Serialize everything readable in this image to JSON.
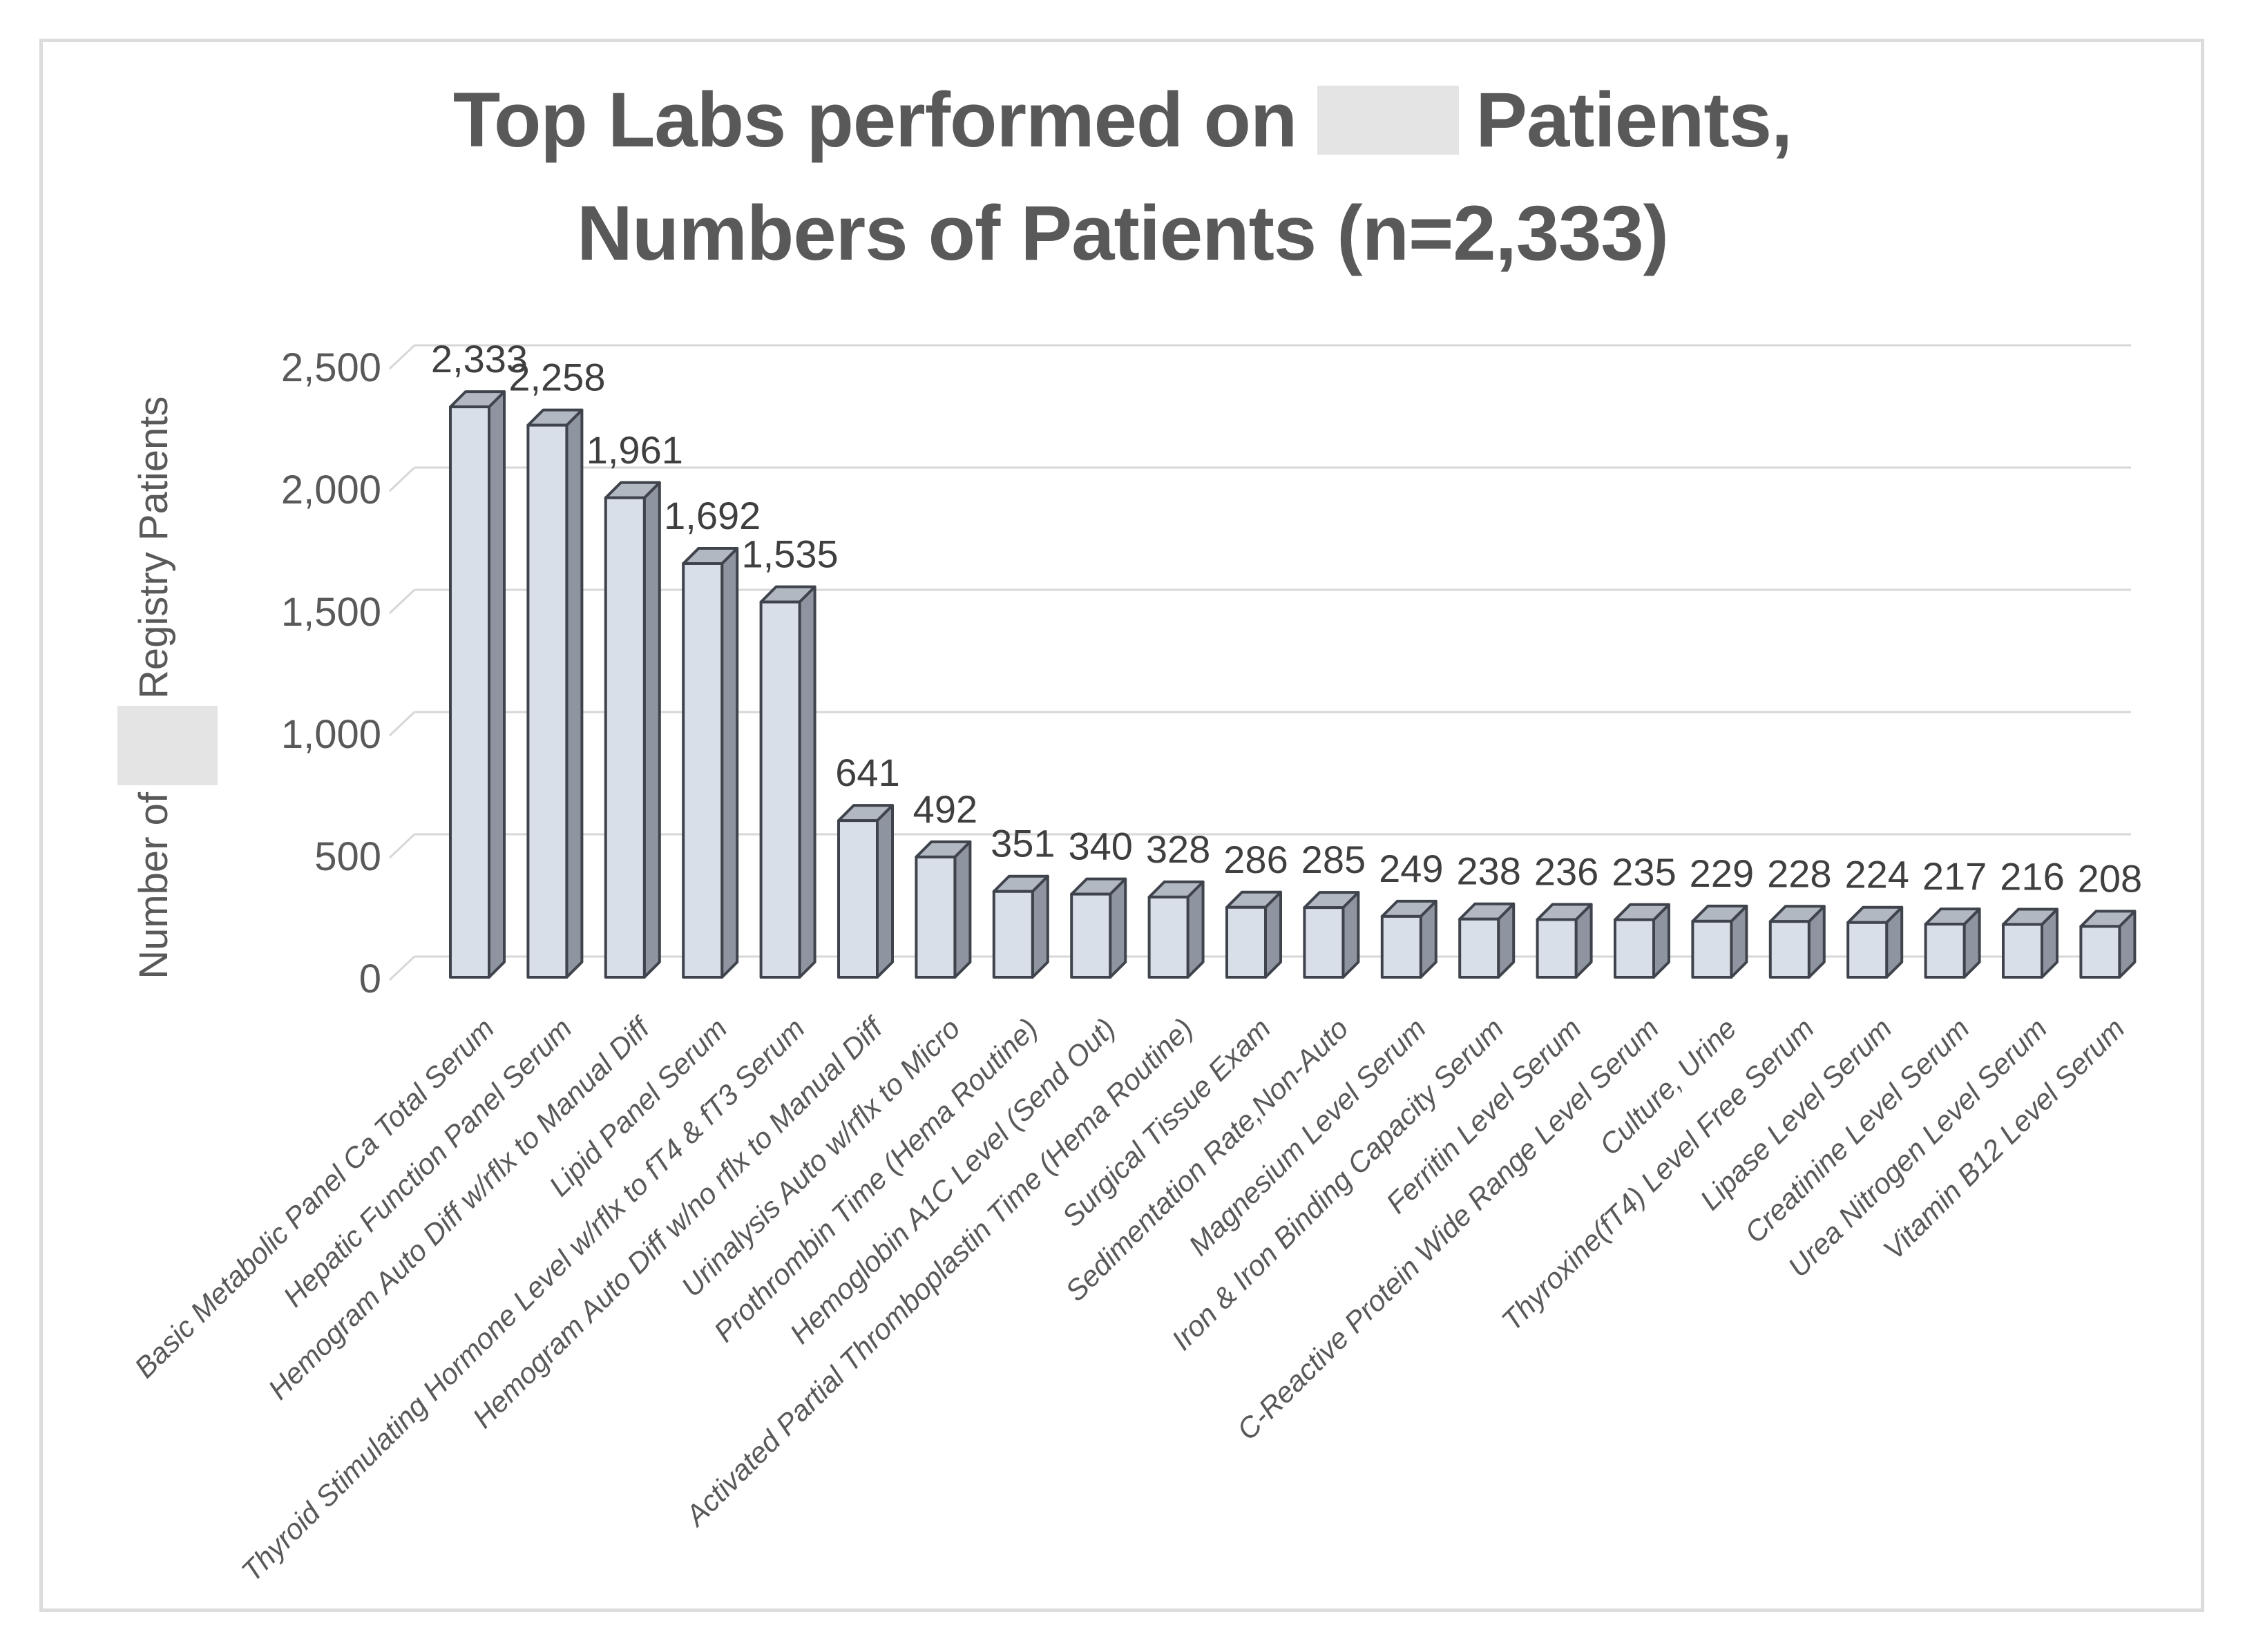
{
  "title": {
    "line1_before": "Top Labs performed on",
    "line1_after": "Patients,",
    "line2": "Numbers of Patients (n=2,333)",
    "redaction": "[redacted]"
  },
  "chart_data": {
    "type": "bar",
    "style": "3d-column",
    "title": "Top Labs performed on [redacted] Patients, Numbers of Patients (n=2,333)",
    "n_total": "2,333",
    "ylabel_before": "Number of",
    "ylabel_redaction": "[redacted]",
    "ylabel_after": "Registry Patients",
    "xlabel": "",
    "ylim": [
      0,
      2500
    ],
    "ytick_interval": 500,
    "yticks": [
      "0",
      "500",
      "1,000",
      "1,500",
      "2,000",
      "2,500"
    ],
    "grid": true,
    "legend": "none",
    "categories": [
      "Basic Metabolic Panel Ca Total Serum",
      "Hepatic Function Panel Serum",
      "Hemogram Auto Diff w/rflx to Manual Diff",
      "Lipid Panel Serum",
      "Thyroid Stimulating Hormone Level w/rflx to fT4 & fT3 Serum",
      "Hemogram Auto Diff w/no rflx to Manual Diff",
      "Urinalysis Auto w/rflx to Micro",
      "Prothrombin Time (Hema Routine)",
      "Hemoglobin A1C Level (Send Out)",
      "Activated Partial Thromboplastin Time (Hema Routine)",
      "Surgical Tissue Exam",
      "Sedimentation Rate,Non-Auto",
      "Magnesium Level Serum",
      "Iron & Iron Binding Capacity Serum",
      "Ferritin Level Serum",
      "C-Reactive Protein Wide Range Level Serum",
      "Culture, Urine",
      "Thyroxine(fT4) Level Free Serum",
      "Lipase Level Serum",
      "Creatinine Level Serum",
      "Urea Nitrogen Level Serum",
      "Vitamin B12 Level Serum"
    ],
    "values": [
      2333,
      2258,
      1961,
      1692,
      1535,
      641,
      492,
      351,
      340,
      328,
      286,
      285,
      249,
      238,
      236,
      235,
      229,
      228,
      224,
      217,
      216,
      208
    ],
    "value_labels": [
      "2,333",
      "2,258",
      "1,961",
      "1,692",
      "1,535",
      "641",
      "492",
      "351",
      "340",
      "328",
      "286",
      "285",
      "249",
      "238",
      "236",
      "235",
      "229",
      "228",
      "224",
      "217",
      "216",
      "208"
    ],
    "colors": {
      "bar_front": "#d9dfe8",
      "bar_top": "#b2b8c2",
      "bar_side": "#8e95a0",
      "bar_outline": "#3f444c",
      "gridline": "#d7d7d7",
      "axis_text": "#595959",
      "value_label_text": "#3f3f3f",
      "title_text": "#595959",
      "redaction_fill": "#e4e4e4",
      "page_border": "#dcdcdc"
    }
  }
}
